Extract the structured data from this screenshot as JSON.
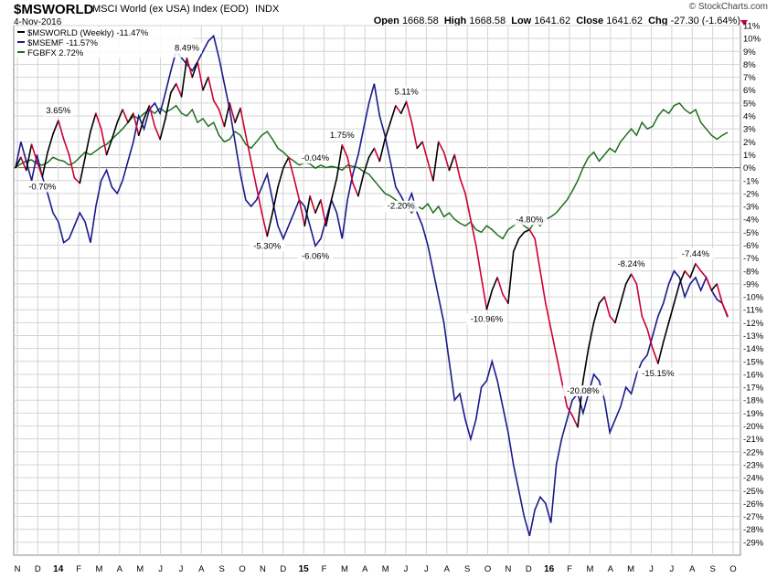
{
  "header": {
    "symbol": "$MSWORLD",
    "description": "MSCI World (ex USA) Index (EOD)",
    "exchange": "INDX",
    "date": "4-Nov-2016",
    "brand": "© StockCharts.com",
    "open_label": "Open",
    "open": "1668.58",
    "high_label": "High",
    "high": "1668.58",
    "low_label": "Low",
    "low": "1641.62",
    "close_label": "Close",
    "close": "1641.62",
    "chg_label": "Chg",
    "chg": "-27.30 (-1.64%)"
  },
  "colors": {
    "black": "#000000",
    "navy": "#1a1a8c",
    "green": "#1e6e1e",
    "red": "#cc0033",
    "grid": "#d4d4d4"
  },
  "chart_data": {
    "type": "line",
    "y_unit": "%",
    "ylim": [
      -30,
      11
    ],
    "y_ticks": [
      11,
      10,
      9,
      8,
      7,
      6,
      5,
      4,
      3,
      2,
      1,
      0,
      -1,
      -2,
      -3,
      -4,
      -5,
      -6,
      -7,
      -8,
      -9,
      -10,
      -11,
      -12,
      -13,
      -14,
      -15,
      -16,
      -17,
      -18,
      -19,
      -20,
      -21,
      -22,
      -23,
      -24,
      -25,
      -26,
      -27,
      -28,
      -29
    ],
    "x_ticks": [
      "N",
      "D",
      "14",
      "F",
      "M",
      "A",
      "M",
      "J",
      "J",
      "A",
      "S",
      "O",
      "N",
      "D",
      "15",
      "F",
      "M",
      "A",
      "M",
      "J",
      "J",
      "A",
      "S",
      "O",
      "N",
      "D",
      "16",
      "F",
      "M",
      "A",
      "M",
      "J",
      "J",
      "A",
      "S",
      "O"
    ],
    "grid": true,
    "legend": "top-left",
    "series": [
      {
        "name": "$MSWORLD (Weekly) -11.47%",
        "color": "#000000",
        "values": [
          0,
          0.8,
          -0.2,
          1.8,
          0.5,
          -0.7,
          1.2,
          2.6,
          3.65,
          2.2,
          1.0,
          -0.8,
          -1.2,
          0.8,
          2.8,
          4.2,
          3.0,
          1.0,
          2.2,
          3.5,
          4.5,
          3.5,
          4.2,
          2.5,
          3.8,
          4.8,
          3.2,
          2.2,
          3.8,
          5.8,
          6.5,
          5.5,
          8.49,
          7.0,
          8.2,
          6.0,
          7.0,
          5.2,
          4.5,
          3.2,
          5.0,
          3.5,
          4.6,
          2.5,
          0.5,
          -1.5,
          -3.5,
          -5.3,
          -3.5,
          -1.5,
          -0.04,
          0.8,
          -0.8,
          -2.5,
          -4.5,
          -2.2,
          -3.5,
          -2.5,
          -4.5,
          -2.5,
          -0.8,
          1.75,
          0.8,
          -1.2,
          -2.2,
          -0.5,
          0.8,
          1.5,
          0.5,
          2.2,
          3.5,
          4.8,
          4.2,
          5.11,
          3.5,
          1.5,
          2.0,
          0.5,
          -1.0,
          2.0,
          1.2,
          -0.2,
          1.0,
          -0.8,
          -2.0,
          -4.0,
          -6.0,
          -8.5,
          -10.96,
          -9.5,
          -8.5,
          -9.8,
          -10.5,
          -6.5,
          -5.5,
          -5.0,
          -4.8,
          -5.5,
          -8.0,
          -10.5,
          -12.5,
          -14.5,
          -16.5,
          -18.5,
          -19.2,
          -20.08,
          -16.5,
          -14.0,
          -12.0,
          -10.5,
          -10.0,
          -11.5,
          -12.0,
          -10.5,
          -9.0,
          -8.24,
          -9.0,
          -11.5,
          -12.5,
          -14.0,
          -15.15,
          -13.5,
          -12.0,
          -10.5,
          -9.0,
          -8.0,
          -8.5,
          -7.44,
          -8.0,
          -8.5,
          -9.5,
          -9.0,
          -10.5,
          -11.47
        ]
      },
      {
        "name": "$MSEMF -11.57%",
        "color": "#1a1a8c",
        "values": [
          0,
          2.0,
          0.5,
          -1.0,
          1.0,
          -0.7,
          -2.0,
          -3.5,
          -4.2,
          -5.8,
          -5.5,
          -4.5,
          -3.5,
          -4.2,
          -5.8,
          -3.0,
          -1.0,
          -0.2,
          -1.5,
          -2.0,
          -1.0,
          0.5,
          2.0,
          4.0,
          3.0,
          4.5,
          5.0,
          4.2,
          5.8,
          7.5,
          9.0,
          8.5,
          8.0,
          7.5,
          8.2,
          9.0,
          9.8,
          10.2,
          8.5,
          6.5,
          4.5,
          2.0,
          -0.5,
          -2.5,
          -3.0,
          -2.5,
          -1.5,
          -0.5,
          -2.5,
          -4.5,
          -5.5,
          -4.5,
          -3.5,
          -2.5,
          -3.0,
          -4.5,
          -6.06,
          -5.5,
          -4.0,
          -2.5,
          -3.5,
          -5.5,
          -2.5,
          -0.5,
          1.0,
          3.0,
          5.0,
          6.5,
          4.0,
          2.5,
          0.5,
          -1.5,
          -2.2,
          -3.0,
          -2.0,
          -3.5,
          -4.5,
          -6.0,
          -8.0,
          -10.0,
          -12.0,
          -15.0,
          -18.0,
          -17.5,
          -19.5,
          -21.0,
          -19.5,
          -17.0,
          -16.5,
          -15.0,
          -16.5,
          -18.5,
          -20.5,
          -23.0,
          -25.0,
          -27.0,
          -28.5,
          -26.5,
          -25.5,
          -26.0,
          -27.5,
          -23.0,
          -21.0,
          -19.5,
          -18.0,
          -17.5,
          -19.0,
          -17.5,
          -16.0,
          -16.5,
          -18.0,
          -20.5,
          -19.5,
          -18.5,
          -17.0,
          -17.5,
          -16.0,
          -15.0,
          -14.5,
          -13.0,
          -11.5,
          -10.5,
          -9.0,
          -8.0,
          -8.5,
          -10.0,
          -9.0,
          -8.5,
          -9.5,
          -8.5,
          -9.5,
          -10.2,
          -10.5,
          -11.57
        ]
      },
      {
        "name": "FGBFX 2.72%",
        "color": "#1e6e1e",
        "values": [
          0,
          0.3,
          0.5,
          0.6,
          0.3,
          0.2,
          0.4,
          0.8,
          0.6,
          0.5,
          0.2,
          0.4,
          0.8,
          1.2,
          1.0,
          1.3,
          1.6,
          1.8,
          2.2,
          2.6,
          3.0,
          3.5,
          4.0,
          3.8,
          4.2,
          4.5,
          4.2,
          4.6,
          4.3,
          4.5,
          4.8,
          4.2,
          4.0,
          4.5,
          3.5,
          3.8,
          3.2,
          3.5,
          2.5,
          2.0,
          2.2,
          2.8,
          2.5,
          1.8,
          1.5,
          2.0,
          2.5,
          2.8,
          2.2,
          1.5,
          1.2,
          0.8,
          0.5,
          0.2,
          0.4,
          0.3,
          -0.04,
          0.2,
          0.0,
          0.1,
          0.0,
          -0.2,
          0.2,
          0.1,
          0.0,
          -0.3,
          -0.5,
          -1.0,
          -1.5,
          -2.0,
          -2.2,
          -2.5,
          -2.8,
          -3.0,
          -3.5,
          -3.0,
          -3.2,
          -2.8,
          -3.5,
          -3.0,
          -3.8,
          -3.5,
          -4.0,
          -4.3,
          -4.5,
          -4.2,
          -4.8,
          -5.0,
          -4.5,
          -4.8,
          -5.2,
          -5.5,
          -4.8,
          -4.5,
          -4.2,
          -4.5,
          -4.8,
          -4.2,
          -4.5,
          -4.0,
          -3.8,
          -3.5,
          -3.0,
          -2.5,
          -1.8,
          -1.0,
          0.0,
          0.8,
          1.2,
          0.5,
          1.0,
          1.5,
          1.2,
          2.0,
          2.5,
          3.0,
          2.5,
          3.5,
          3.0,
          3.2,
          4.0,
          4.5,
          4.2,
          4.8,
          5.0,
          4.5,
          4.2,
          4.5,
          3.5,
          3.0,
          2.5,
          2.2,
          2.5,
          2.72
        ]
      }
    ],
    "annotations": [
      "3.65%",
      "-0.70%",
      "8.49%",
      "-5.30%",
      "-0.04%",
      "-6.06%",
      "1.75%",
      "-2.20%",
      "5.11%",
      "-4.80%",
      "-10.96%",
      "-20.08%",
      "-8.24%",
      "-15.15%",
      "-7.44%"
    ]
  }
}
